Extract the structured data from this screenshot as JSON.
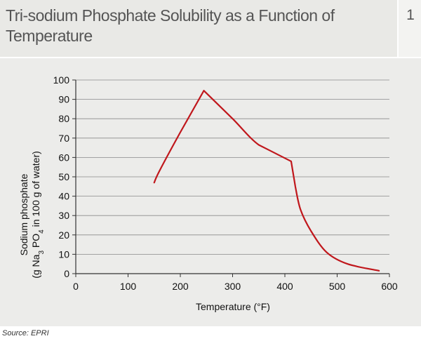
{
  "header": {
    "title": "Tri-sodium Phosphate Solubility as a Function of Temperature",
    "figure_number": "1"
  },
  "footer": {
    "source": "Source: EPRI"
  },
  "colors": {
    "line": "#c0171c",
    "header_bg": "#e9e9e6",
    "plot_bg": "#ececea"
  },
  "chart_data": {
    "type": "line",
    "title": "Tri-sodium Phosphate Solubility as a Function of Temperature",
    "xlabel": "Temperature (°F)",
    "ylabel_line1": "Sodium phosphate",
    "ylabel_line2": "(g Na3 PO4 in 100 g of water)",
    "xlim": [
      0,
      600
    ],
    "ylim": [
      0,
      100
    ],
    "x_ticks": [
      0,
      100,
      200,
      300,
      400,
      500,
      600
    ],
    "y_ticks": [
      0,
      10,
      20,
      30,
      40,
      50,
      60,
      70,
      80,
      90,
      100
    ],
    "grid": "horizontal",
    "series": [
      {
        "x": [
          150,
          160,
          200,
          245,
          300,
          350,
          412,
          420,
          430,
          450,
          480,
          520,
          580
        ],
        "y": [
          47,
          53,
          73,
          94.5,
          80,
          66.5,
          58,
          45,
          33,
          22,
          11,
          5,
          1.5
        ]
      }
    ]
  }
}
